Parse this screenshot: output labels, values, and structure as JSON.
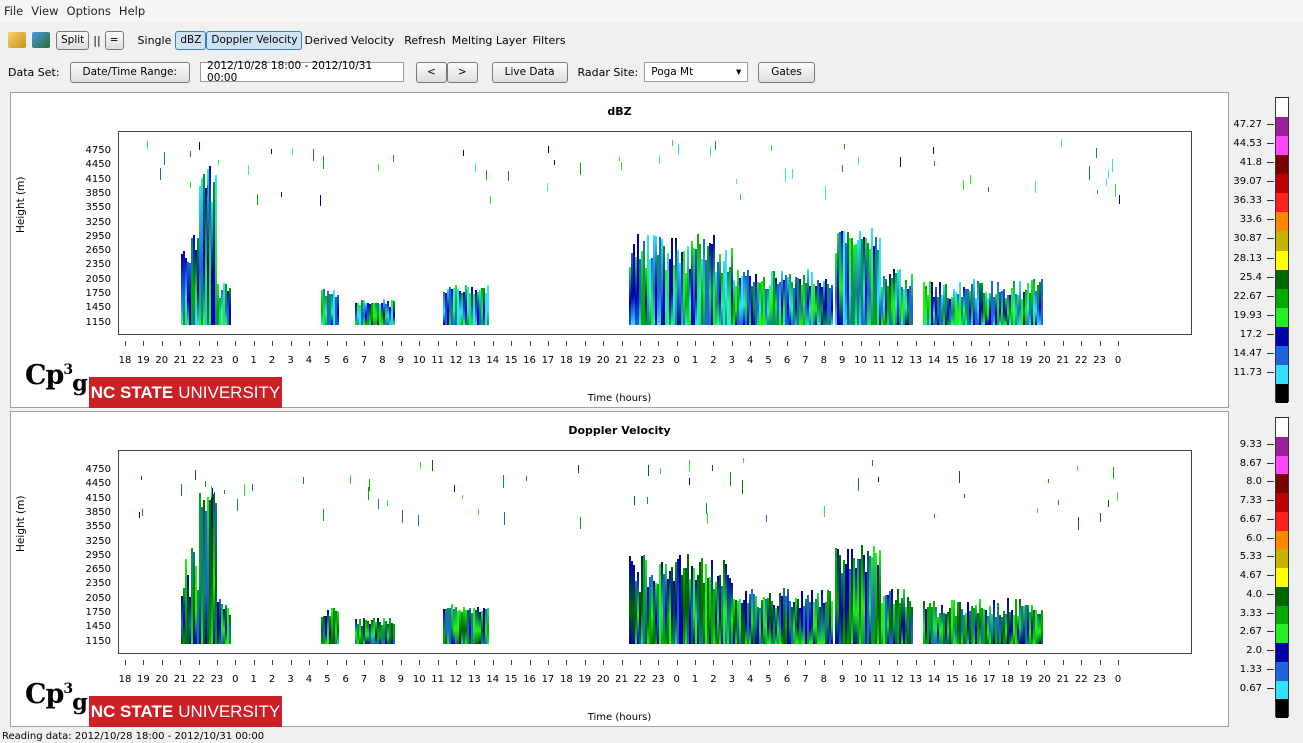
{
  "menu": [
    "File",
    "View",
    "Options",
    "Help"
  ],
  "toolbar": {
    "split": "Split",
    "sep": "||",
    "eq": "=",
    "single": "Single",
    "dbz": "dBZ",
    "doppler": "Doppler Velocity",
    "derived": "Derived Velocity",
    "refresh": "Refresh",
    "melting": "Melting Layer",
    "filters": "Filters"
  },
  "dataset": {
    "label": "Data Set:",
    "range_btn": "Date/Time Range:",
    "range_value": "2012/10/28 18:00 - 2012/10/31 00:00",
    "prev": "<",
    "next": ">",
    "live": "Live Data",
    "site_label": "Radar Site:",
    "site_value": "Poga Mt",
    "gates": "Gates"
  },
  "panels": [
    {
      "title": "dBZ",
      "ylabel": "Height (m)",
      "xlabel": "Time (hours)",
      "colorbar": [
        "47.27",
        "44.53",
        "41.8",
        "39.07",
        "36.33",
        "33.6",
        "30.87",
        "28.13",
        "25.4",
        "22.67",
        "19.93",
        "17.2",
        "14.47",
        "11.73"
      ]
    },
    {
      "title": "Doppler Velocity",
      "ylabel": "Height (m)",
      "xlabel": "Time (hours)",
      "colorbar": [
        "9.33",
        "8.67",
        "8.0",
        "7.33",
        "6.67",
        "6.0",
        "5.33",
        "4.67",
        "4.0",
        "3.33",
        "2.67",
        "2.0",
        "1.33",
        "0.67"
      ]
    }
  ],
  "yticks": [
    "4750",
    "4450",
    "4150",
    "3850",
    "3550",
    "3250",
    "2950",
    "2650",
    "2350",
    "2050",
    "1750",
    "1450",
    "1150"
  ],
  "xticks": [
    "18",
    "19",
    "20",
    "21",
    "22",
    "23",
    "0",
    "1",
    "2",
    "3",
    "4",
    "5",
    "6",
    "7",
    "8",
    "9",
    "10",
    "11",
    "12",
    "13",
    "14",
    "15",
    "16",
    "17",
    "18",
    "19",
    "20",
    "21",
    "22",
    "23",
    "0",
    "1",
    "2",
    "3",
    "4",
    "5",
    "6",
    "7",
    "8",
    "9",
    "10",
    "11",
    "12",
    "13",
    "14",
    "15",
    "16",
    "17",
    "18",
    "19",
    "20",
    "21",
    "22",
    "23",
    "0"
  ],
  "logo": {
    "cp": "Cp",
    "sup": "3",
    "sub": "g",
    "univ_bold": "NC STATE",
    "univ": "UNIVERSITY"
  },
  "status": "Reading data: 2012/10/28 18:00 - 2012/10/31 00:00",
  "colors": {
    "scale": [
      "#ffffff",
      "#9b1f9b",
      "#ff44ff",
      "#7a0000",
      "#bb0000",
      "#ff2020",
      "#ff8800",
      "#c8b400",
      "#ffff00",
      "#006600",
      "#00aa00",
      "#22ee22",
      "#0000aa",
      "#1e64dc",
      "#33e0ff",
      "#000000"
    ],
    "brand": "#cc2027"
  }
}
